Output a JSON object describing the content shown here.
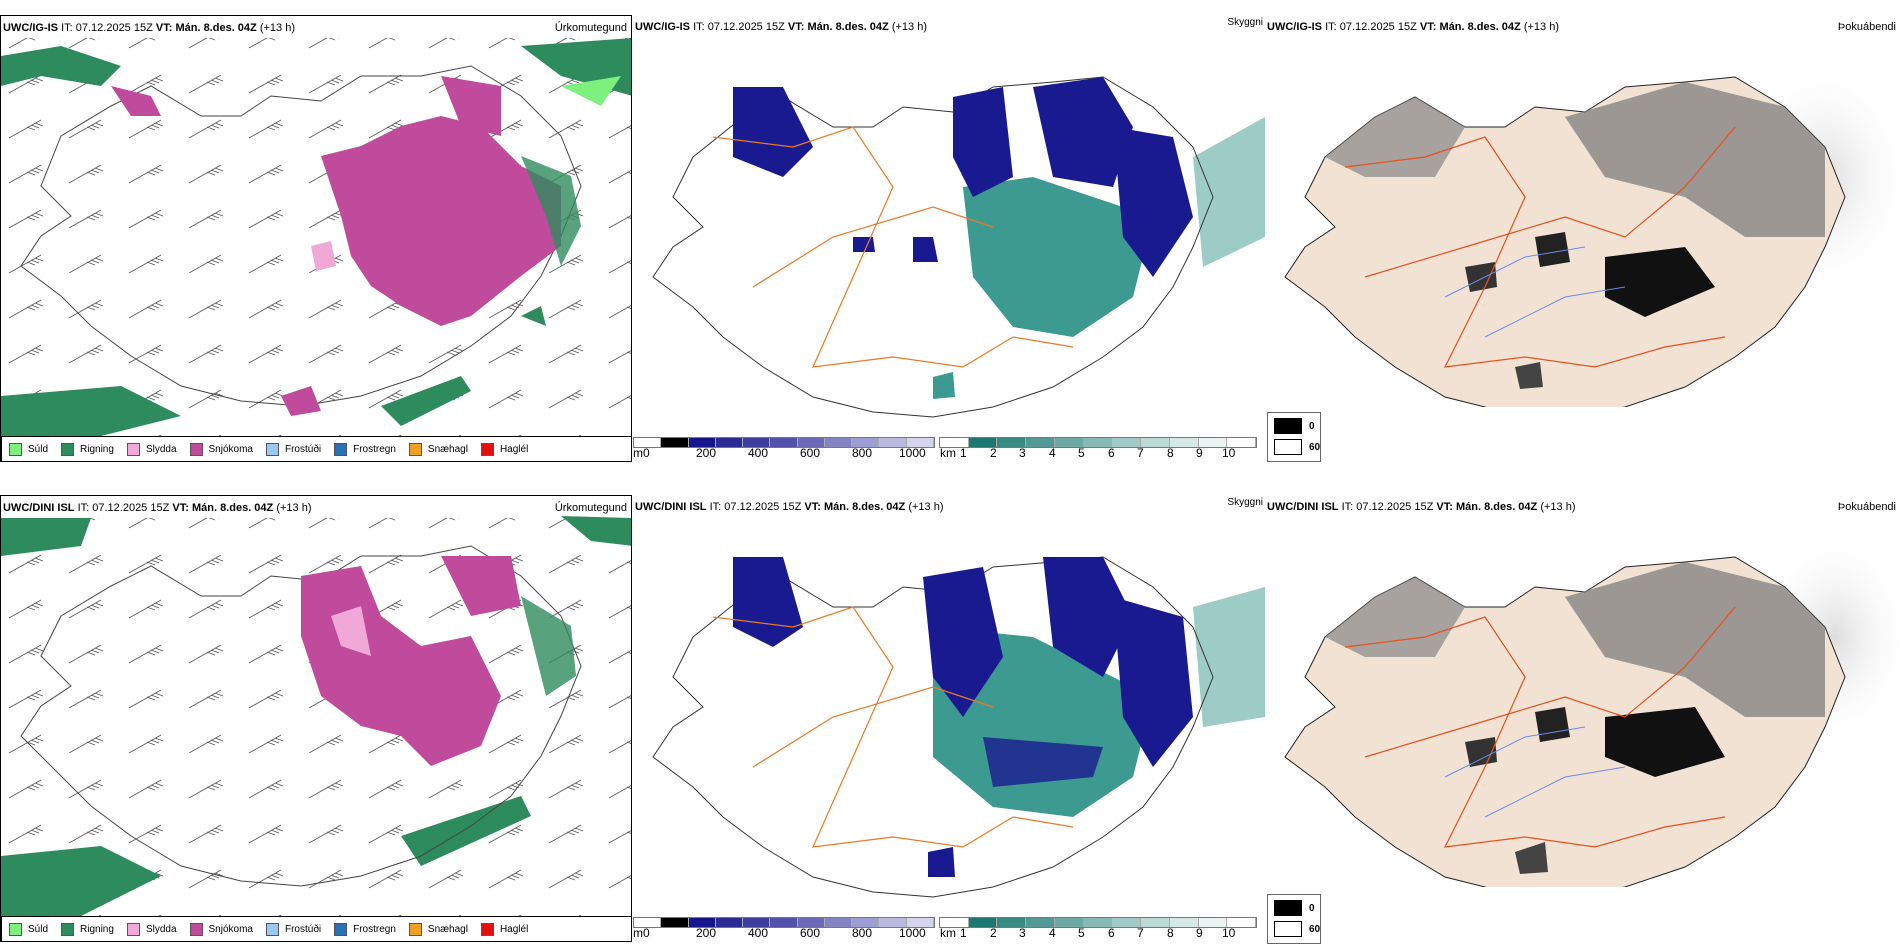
{
  "rows": [
    {
      "model": "UWC/IG-IS",
      "it_label": "IT:",
      "it_value": "07.12.2025 15Z",
      "vt_label": "VT:",
      "vt_value": "Mán. 8.des. 04Z",
      "lead": "(+13 h)",
      "panels": {
        "precip": {
          "type_label": "Úrkomutegund"
        },
        "cloud": {
          "type_label": "Skyggni"
        },
        "fog": {
          "type_label": "Þokuábendi"
        }
      }
    },
    {
      "model": "UWC/DINI ISL",
      "it_label": "IT:",
      "it_value": "07.12.2025 15Z",
      "vt_label": "VT:",
      "vt_value": "Mán. 8.des. 04Z",
      "lead": "(+13 h)",
      "panels": {
        "precip": {
          "type_label": "Úrkomutegund"
        },
        "cloud": {
          "type_label": "Skyggni"
        },
        "fog": {
          "type_label": "Þokuábendi"
        }
      }
    }
  ],
  "precip_legend": [
    {
      "label": "Súld",
      "color": "#7ef07e"
    },
    {
      "label": "Rigning",
      "color": "#2e8b5e"
    },
    {
      "label": "Slydda",
      "color": "#f0a8d8"
    },
    {
      "label": "Snjókoma",
      "color": "#c04a9c"
    },
    {
      "label": "Frostúði",
      "color": "#9cc8f4"
    },
    {
      "label": "Frostregn",
      "color": "#2a70b8"
    },
    {
      "label": "Snæhagl",
      "color": "#f0a020"
    },
    {
      "label": "Haglél",
      "color": "#e01010"
    }
  ],
  "cloudbase_bar": {
    "unit": "m",
    "ticks": [
      "0",
      "200",
      "400",
      "600",
      "800",
      "1000"
    ],
    "colors": [
      "#000000",
      "#16168c",
      "#2b2b96",
      "#3e3ea0",
      "#5252aa",
      "#6a6ab6",
      "#8484c4",
      "#9e9ed2",
      "#babae0",
      "#d4d4ee"
    ]
  },
  "visibility_bar": {
    "unit": "km",
    "ticks": [
      "1",
      "2",
      "3",
      "4",
      "5",
      "6",
      "7",
      "8",
      "9",
      "10"
    ],
    "colors": [
      "#1e7872",
      "#3a8a84",
      "#549a94",
      "#6eaaa4",
      "#88bab4",
      "#a2cac6",
      "#bcdad6",
      "#d4e8e6",
      "#eaf4f2",
      "#ffffff"
    ]
  },
  "fog_legend": [
    {
      "label": "0",
      "color": "#000000"
    },
    {
      "label": "60",
      "color": "#ffffff"
    }
  ],
  "colors": {
    "land_fog": "#f2e2d4",
    "roads": "#e8501e",
    "rivers": "#6a8ae8",
    "visibility_teal": "#3c9a90",
    "cloud_navy": "#1a1a90"
  }
}
